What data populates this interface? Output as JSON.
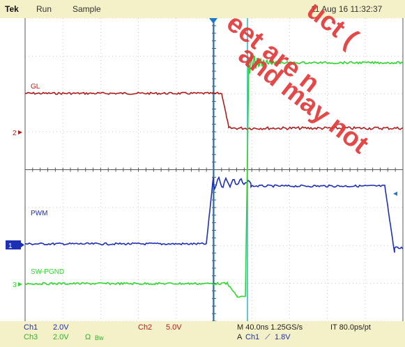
{
  "header": {
    "brand": "Tek",
    "mode": "Run",
    "acquisition": "Sample",
    "datetime": "11 Aug 16 11:32:37"
  },
  "channels": {
    "gl": {
      "label": "GL",
      "marker": "2",
      "color": "#b01c1c"
    },
    "pwm": {
      "label": "PWM",
      "marker": "1",
      "color": "#1c2fb5"
    },
    "sw": {
      "label": "SW-PGND",
      "marker": "3",
      "color": "#2fd62f"
    }
  },
  "footer": {
    "ch1_label": "Ch1",
    "ch1_scale": "2.0V",
    "ch3_label": "Ch3",
    "ch3_scale": "2.0V",
    "bw_symbol": "Ω",
    "bw_text": "Bw",
    "ch2_label": "Ch2",
    "ch2_scale": "5.0V",
    "timebase": "M 40.0ns 1.25GS/s",
    "it": "IT 80.0ps/pt",
    "trigger": "A",
    "trigger_channel": "Ch1",
    "trigger_slope": "⟋",
    "trigger_level": "1.8V"
  },
  "watermark": {
    "line1": "uct (",
    "line2": "eet are n",
    "line3": "and may not"
  },
  "colors": {
    "grid": "#c9c9c9",
    "axis": "#555555",
    "cursor": "#29b7c9",
    "trigger_marker": "#1c78c9",
    "bar": "#f4f1c9"
  }
}
